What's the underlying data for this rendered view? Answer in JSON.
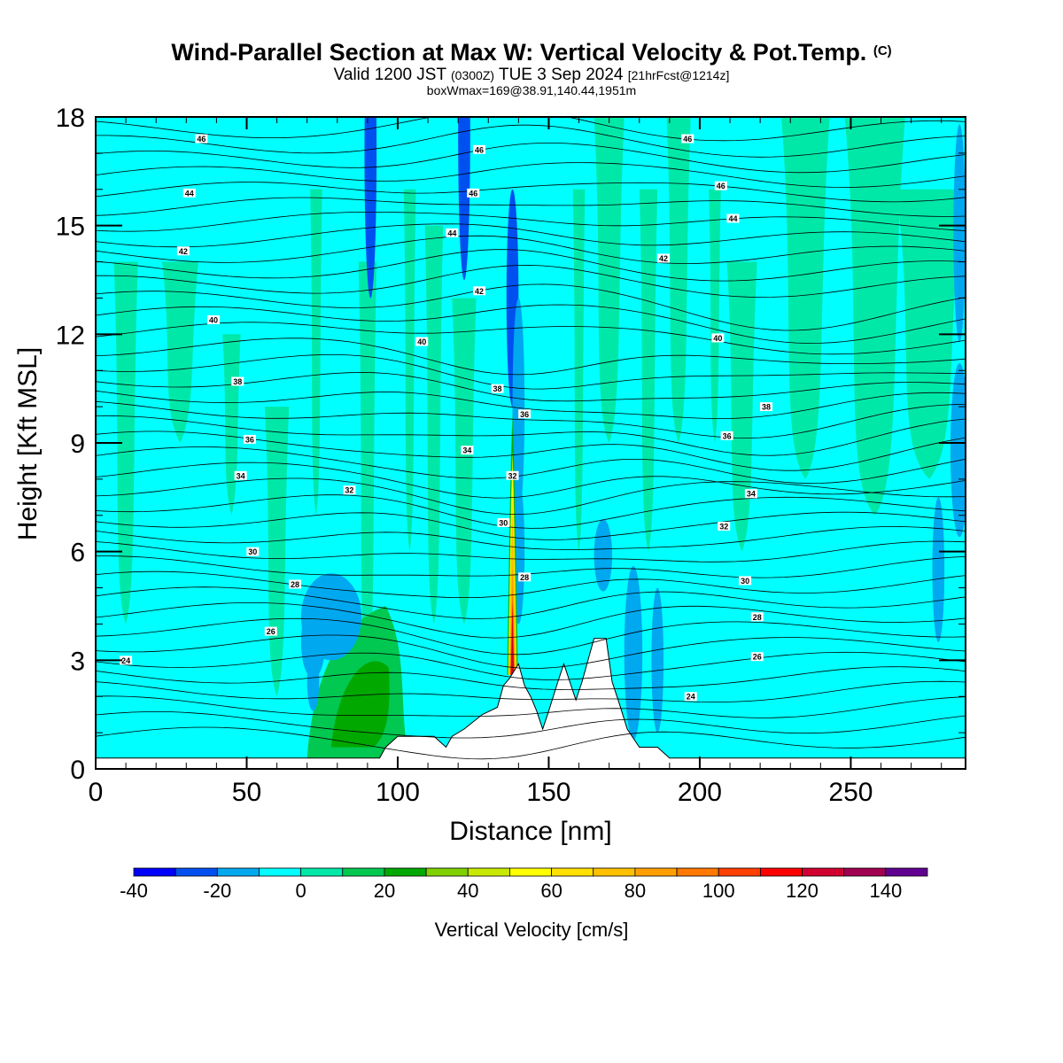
{
  "header": {
    "title_main": "Wind-Parallel Section at Max W: Vertical Velocity & Pot.Temp.",
    "title_mark": "(C)",
    "valid_prefix": "Valid 1200 JST",
    "valid_utc": "(0300Z)",
    "valid_date": "TUE 3 Sep 2024",
    "valid_fcst": "[21hrFcst@1214z]",
    "box_line": "boxWmax=169@38.91,140.44,1951m"
  },
  "chart_data": {
    "type": "heatmap",
    "title": "Wind-Parallel Section at Max W: Vertical Velocity & Pot.Temp.",
    "xlabel": "Distance [nm]",
    "ylabel": "Height [Kft MSL]",
    "xlim": [
      0,
      288
    ],
    "ylim": [
      0,
      18
    ],
    "x_ticks": [
      0,
      50,
      100,
      150,
      200,
      250
    ],
    "y_ticks": [
      0,
      3,
      6,
      9,
      12,
      15,
      18
    ],
    "colorbar": {
      "label": "Vertical Velocity [cm/s]",
      "levels": [
        -40,
        -30,
        -20,
        -10,
        0,
        10,
        20,
        30,
        40,
        50,
        60,
        70,
        80,
        90,
        100,
        110,
        120,
        130,
        140,
        150
      ],
      "tick_labels": [
        "-40",
        "-20",
        "0",
        "20",
        "40",
        "60",
        "80",
        "100",
        "120",
        "140"
      ],
      "colors": [
        "#0000ff",
        "#0050f0",
        "#00a8f0",
        "#00ffff",
        "#00e8a8",
        "#00c850",
        "#00a800",
        "#80d000",
        "#c8e800",
        "#ffff00",
        "#ffe000",
        "#ffc000",
        "#ffa000",
        "#ff7800",
        "#ff4000",
        "#ff0000",
        "#d00030",
        "#a00050",
        "#600090"
      ]
    },
    "theta_contour_labels": [
      {
        "x": 35,
        "y": 17.4,
        "text": "46"
      },
      {
        "x": 127,
        "y": 17.1,
        "text": "46"
      },
      {
        "x": 196,
        "y": 17.4,
        "text": "46"
      },
      {
        "x": 31,
        "y": 15.9,
        "text": "44"
      },
      {
        "x": 125,
        "y": 15.9,
        "text": "46"
      },
      {
        "x": 207,
        "y": 16.1,
        "text": "46"
      },
      {
        "x": 118,
        "y": 14.8,
        "text": "44"
      },
      {
        "x": 211,
        "y": 15.2,
        "text": "44"
      },
      {
        "x": 29,
        "y": 14.3,
        "text": "42"
      },
      {
        "x": 127,
        "y": 13.2,
        "text": "42"
      },
      {
        "x": 188,
        "y": 14.1,
        "text": "42"
      },
      {
        "x": 39,
        "y": 12.4,
        "text": "40"
      },
      {
        "x": 108,
        "y": 11.8,
        "text": "40"
      },
      {
        "x": 206,
        "y": 11.9,
        "text": "40"
      },
      {
        "x": 47,
        "y": 10.7,
        "text": "38"
      },
      {
        "x": 133,
        "y": 10.5,
        "text": "38"
      },
      {
        "x": 222,
        "y": 10.0,
        "text": "38"
      },
      {
        "x": 142,
        "y": 9.8,
        "text": "36"
      },
      {
        "x": 51,
        "y": 9.1,
        "text": "36"
      },
      {
        "x": 209,
        "y": 9.2,
        "text": "36"
      },
      {
        "x": 123,
        "y": 8.8,
        "text": "34"
      },
      {
        "x": 48,
        "y": 8.1,
        "text": "34"
      },
      {
        "x": 217,
        "y": 7.6,
        "text": "34"
      },
      {
        "x": 138,
        "y": 8.1,
        "text": "32"
      },
      {
        "x": 84,
        "y": 7.7,
        "text": "32"
      },
      {
        "x": 208,
        "y": 6.7,
        "text": "32"
      },
      {
        "x": 135,
        "y": 6.8,
        "text": "30"
      },
      {
        "x": 52,
        "y": 6.0,
        "text": "30"
      },
      {
        "x": 215,
        "y": 5.2,
        "text": "30"
      },
      {
        "x": 142,
        "y": 5.3,
        "text": "28"
      },
      {
        "x": 66,
        "y": 5.1,
        "text": "28"
      },
      {
        "x": 219,
        "y": 4.2,
        "text": "28"
      },
      {
        "x": 58,
        "y": 3.8,
        "text": "26"
      },
      {
        "x": 219,
        "y": 3.1,
        "text": "26"
      },
      {
        "x": 10,
        "y": 3.0,
        "text": "24"
      },
      {
        "x": 197,
        "y": 2.0,
        "text": "24"
      }
    ],
    "max_w": {
      "value_cm_s": 169,
      "lat": 38.91,
      "lon": 140.44,
      "height_m": 1951
    },
    "grid": false,
    "legend": "bottom"
  }
}
